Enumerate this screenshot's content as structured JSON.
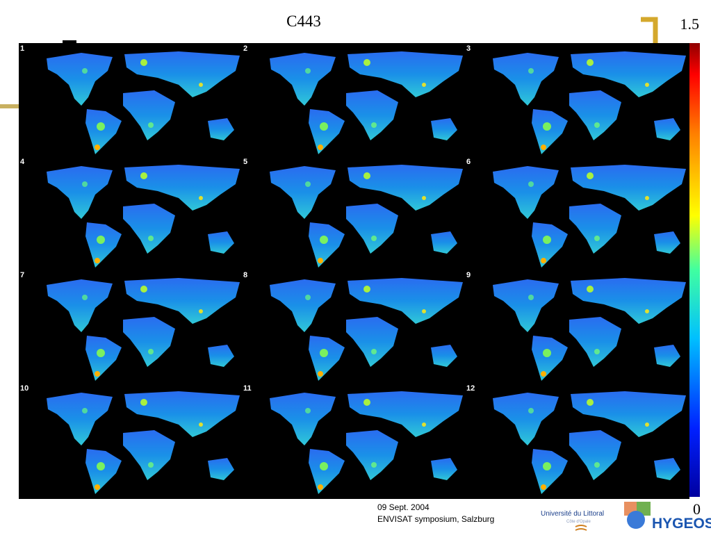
{
  "header": {
    "title": "C443",
    "slide_number": "1.5"
  },
  "colorbar": {
    "max_label": "1.5",
    "min_label": "0"
  },
  "panels": [
    "1",
    "2",
    "3",
    "4",
    "5",
    "6",
    "7",
    "8",
    "9",
    "10",
    "11",
    "12"
  ],
  "footer": {
    "date": "09 Sept. 2004",
    "event": "ENVISAT symposium, Salzburg"
  },
  "logos": {
    "university": "Université du Littoral",
    "university_sub": "Côte d'Opale",
    "company": "HYGEOS"
  }
}
